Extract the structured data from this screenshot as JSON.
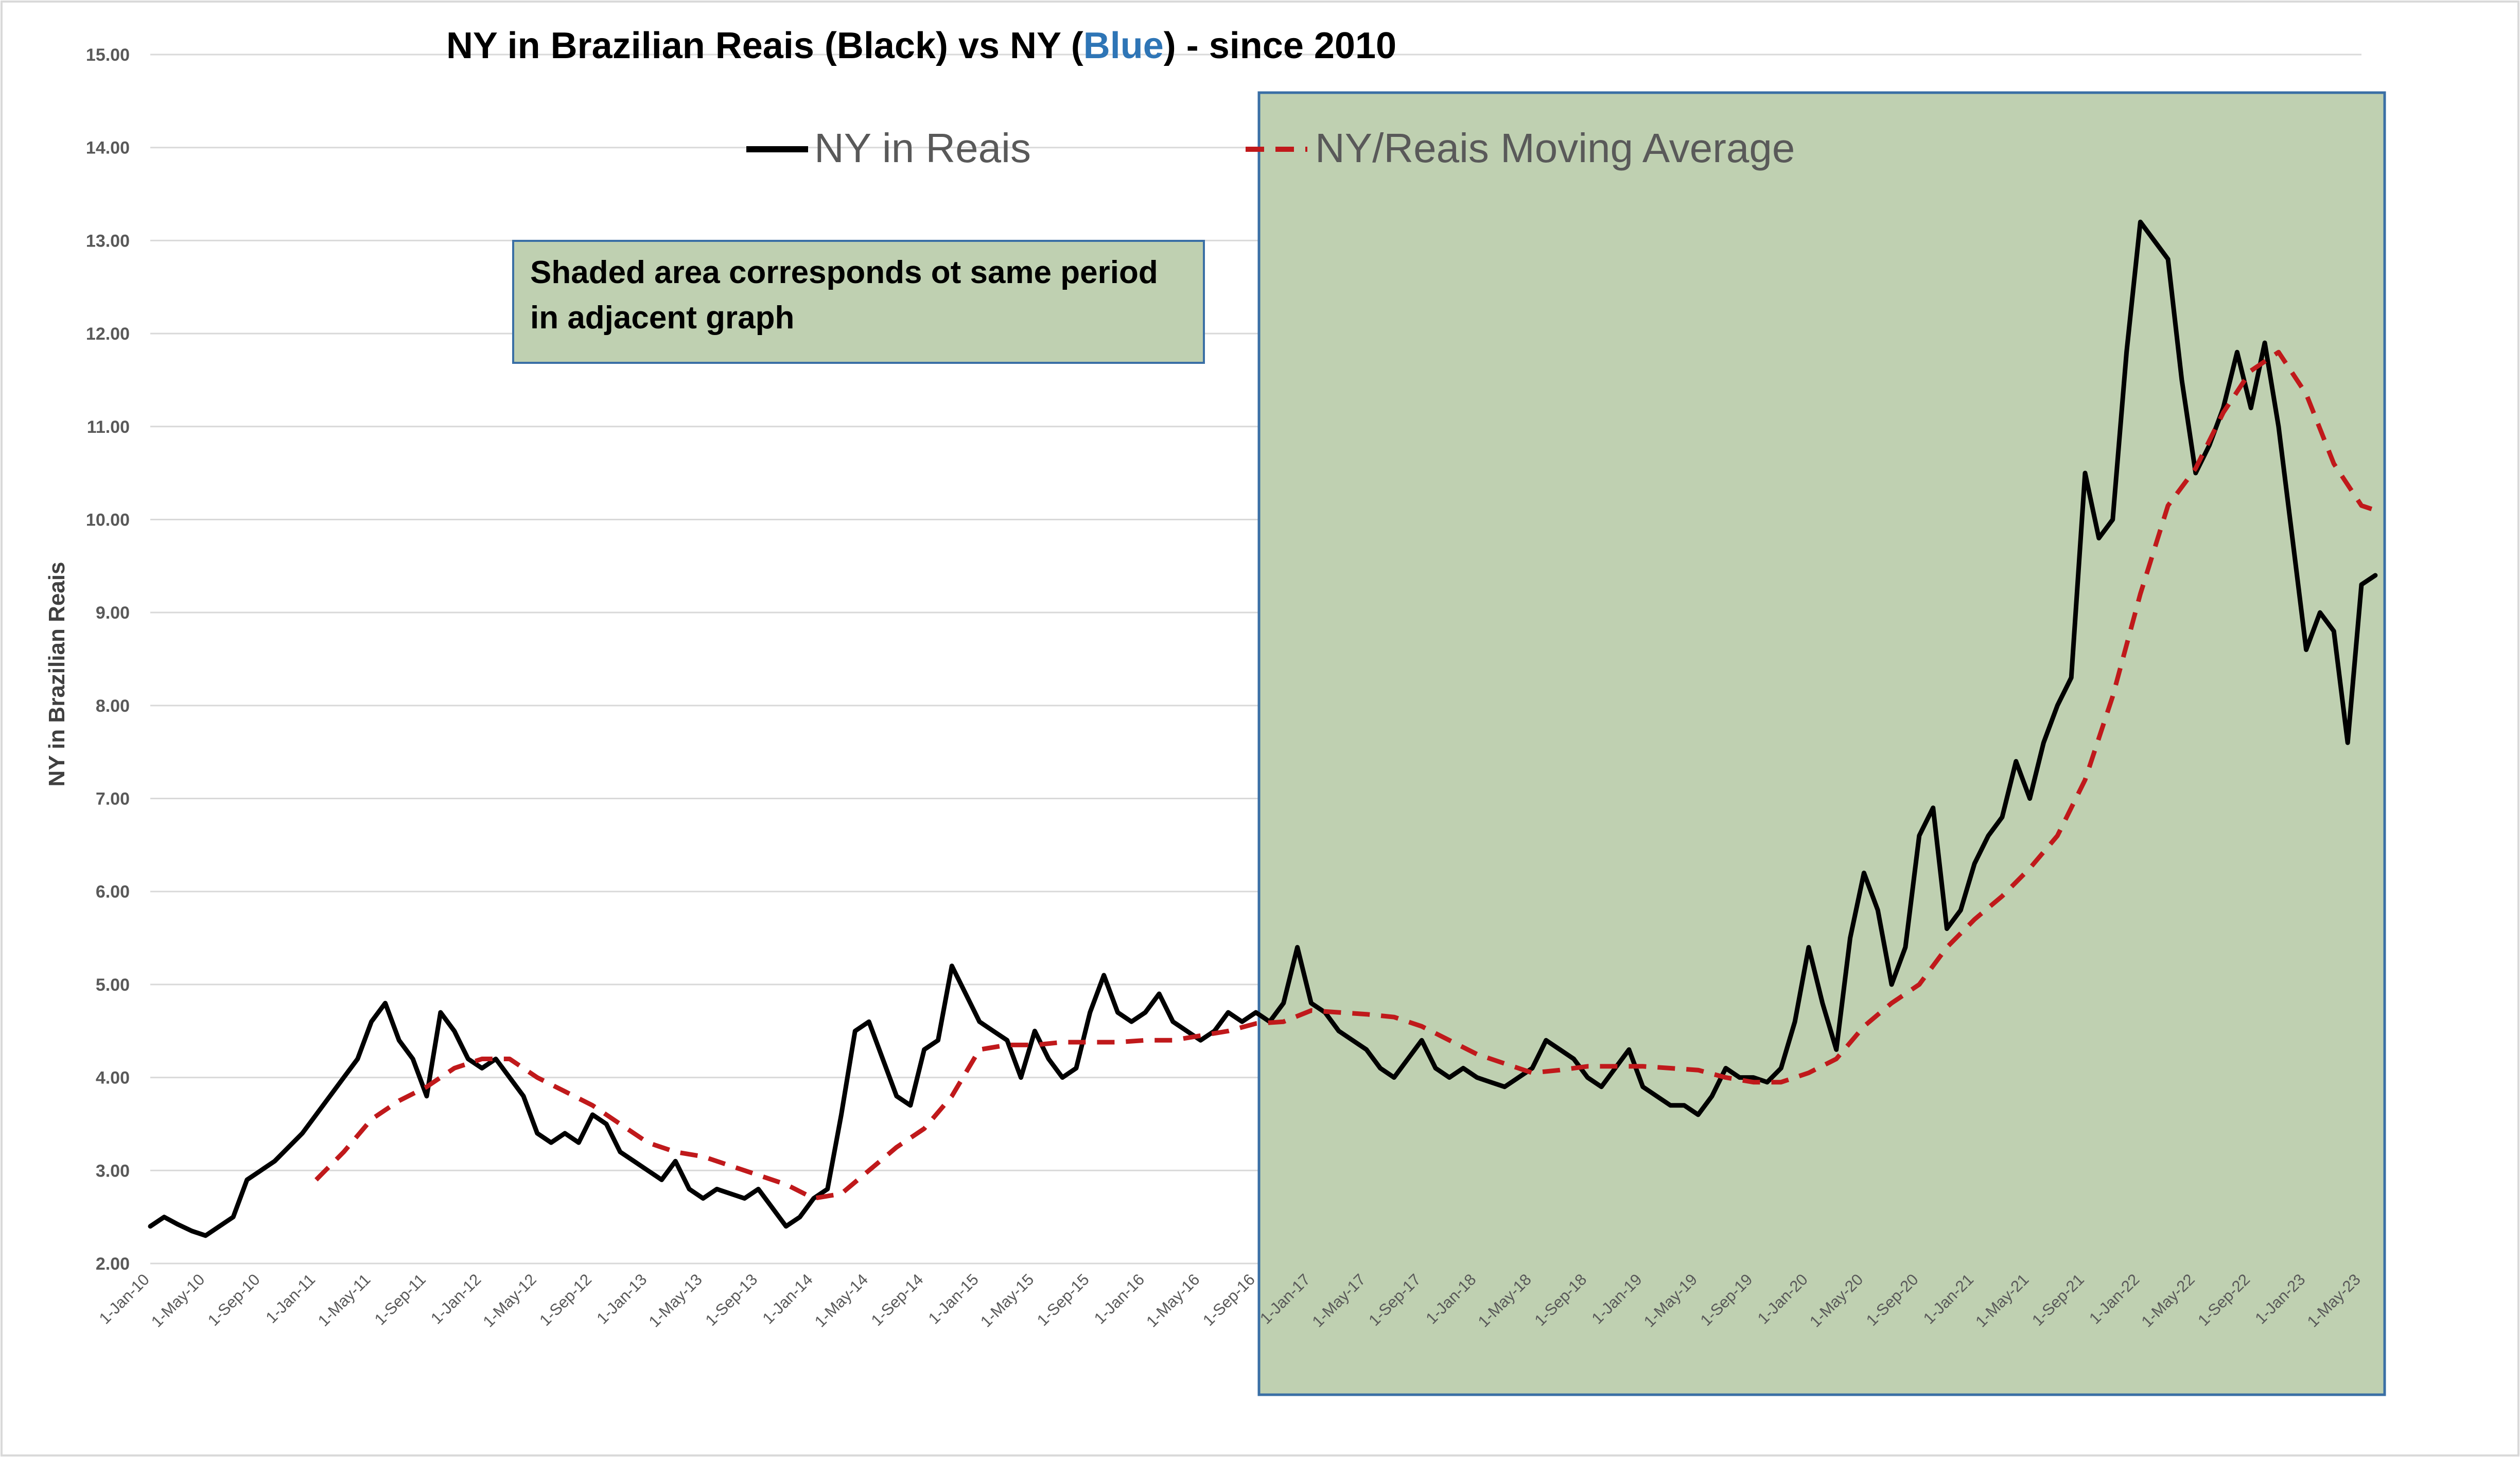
{
  "chart_data": {
    "type": "line",
    "title_parts": [
      "NY in Brazilian Reais (Black) vs NY (",
      "Blue",
      ") - since 2010"
    ],
    "ylabel": "NY in Brazilian Reais",
    "xlabel": "",
    "ylim": [
      2.0,
      15.0
    ],
    "y_ticks": [
      "2.00",
      "3.00",
      "4.00",
      "5.00",
      "6.00",
      "7.00",
      "8.00",
      "9.00",
      "10.00",
      "11.00",
      "12.00",
      "13.00",
      "14.00",
      "15.00"
    ],
    "x_ticks": [
      "1-Jan-10",
      "1-May-10",
      "1-Sep-10",
      "1-Jan-11",
      "1-May-11",
      "1-Sep-11",
      "1-Jan-12",
      "1-May-12",
      "1-Sep-12",
      "1-Jan-13",
      "1-May-13",
      "1-Sep-13",
      "1-Jan-14",
      "1-May-14",
      "1-Sep-14",
      "1-Jan-15",
      "1-May-15",
      "1-Sep-15",
      "1-Jan-16",
      "1-May-16",
      "1-Sep-16",
      "1-Jan-17",
      "1-May-17",
      "1-Sep-17",
      "1-Jan-18",
      "1-May-18",
      "1-Sep-18",
      "1-Jan-19",
      "1-May-19",
      "1-Sep-19",
      "1-Jan-20",
      "1-May-20",
      "1-Sep-20",
      "1-Jan-21",
      "1-May-21",
      "1-Sep-21",
      "1-Jan-22",
      "1-May-22",
      "1-Sep-22",
      "1-Jan-23",
      "1-May-23"
    ],
    "grid": true,
    "legend": "top-center",
    "shaded_region": {
      "start": "1-Sep-16",
      "end": "1-May-23"
    },
    "annotation": [
      "Shaded area corresponds ot same period",
      "in adjacent graph"
    ],
    "colors": {
      "series": "#000000",
      "moving_average": "#c0191b",
      "shade_fill": "#bfd0b1",
      "shade_border": "#3a6fa5",
      "title_blue": "#2e75b6",
      "grid": "#d9d9d9"
    },
    "series": [
      {
        "name": "NY in Reais",
        "points": [
          [
            "1-Jan-10",
            2.4
          ],
          [
            "1-Feb-10",
            2.5
          ],
          [
            "1-Mar-10",
            2.42
          ],
          [
            "1-Apr-10",
            2.35
          ],
          [
            "1-May-10",
            2.3
          ],
          [
            "1-Jun-10",
            2.4
          ],
          [
            "1-Jul-10",
            2.5
          ],
          [
            "1-Aug-10",
            2.9
          ],
          [
            "1-Sep-10",
            3.0
          ],
          [
            "1-Oct-10",
            3.1
          ],
          [
            "1-Nov-10",
            3.25
          ],
          [
            "1-Dec-10",
            3.4
          ],
          [
            "1-Jan-11",
            3.6
          ],
          [
            "1-Feb-11",
            3.8
          ],
          [
            "1-Mar-11",
            4.0
          ],
          [
            "1-Apr-11",
            4.2
          ],
          [
            "1-May-11",
            4.6
          ],
          [
            "1-Jun-11",
            4.8
          ],
          [
            "1-Jul-11",
            4.4
          ],
          [
            "1-Aug-11",
            4.2
          ],
          [
            "1-Sep-11",
            3.8
          ],
          [
            "1-Oct-11",
            4.7
          ],
          [
            "1-Nov-11",
            4.5
          ],
          [
            "1-Dec-11",
            4.2
          ],
          [
            "1-Jan-12",
            4.1
          ],
          [
            "1-Feb-12",
            4.2
          ],
          [
            "1-Mar-12",
            4.0
          ],
          [
            "1-Apr-12",
            3.8
          ],
          [
            "1-May-12",
            3.4
          ],
          [
            "1-Jun-12",
            3.3
          ],
          [
            "1-Jul-12",
            3.4
          ],
          [
            "1-Aug-12",
            3.3
          ],
          [
            "1-Sep-12",
            3.6
          ],
          [
            "1-Oct-12",
            3.5
          ],
          [
            "1-Nov-12",
            3.2
          ],
          [
            "1-Dec-12",
            3.1
          ],
          [
            "1-Jan-13",
            3.0
          ],
          [
            "1-Feb-13",
            2.9
          ],
          [
            "1-Mar-13",
            3.1
          ],
          [
            "1-Apr-13",
            2.8
          ],
          [
            "1-May-13",
            2.7
          ],
          [
            "1-Jun-13",
            2.8
          ],
          [
            "1-Jul-13",
            2.75
          ],
          [
            "1-Aug-13",
            2.7
          ],
          [
            "1-Sep-13",
            2.8
          ],
          [
            "1-Oct-13",
            2.6
          ],
          [
            "1-Nov-13",
            2.4
          ],
          [
            "1-Dec-13",
            2.5
          ],
          [
            "1-Jan-14",
            2.7
          ],
          [
            "1-Feb-14",
            2.8
          ],
          [
            "1-Mar-14",
            3.6
          ],
          [
            "1-Apr-14",
            4.5
          ],
          [
            "1-May-14",
            4.6
          ],
          [
            "1-Jun-14",
            4.2
          ],
          [
            "1-Jul-14",
            3.8
          ],
          [
            "1-Aug-14",
            3.7
          ],
          [
            "1-Sep-14",
            4.3
          ],
          [
            "1-Oct-14",
            4.4
          ],
          [
            "1-Nov-14",
            5.2
          ],
          [
            "1-Dec-14",
            4.9
          ],
          [
            "1-Jan-15",
            4.6
          ],
          [
            "1-Feb-15",
            4.5
          ],
          [
            "1-Mar-15",
            4.4
          ],
          [
            "1-Apr-15",
            4.0
          ],
          [
            "1-May-15",
            4.5
          ],
          [
            "1-Jun-15",
            4.2
          ],
          [
            "1-Jul-15",
            4.0
          ],
          [
            "1-Aug-15",
            4.1
          ],
          [
            "1-Sep-15",
            4.7
          ],
          [
            "1-Oct-15",
            5.1
          ],
          [
            "1-Nov-15",
            4.7
          ],
          [
            "1-Dec-15",
            4.6
          ],
          [
            "1-Jan-16",
            4.7
          ],
          [
            "1-Feb-16",
            4.9
          ],
          [
            "1-Mar-16",
            4.6
          ],
          [
            "1-Apr-16",
            4.5
          ],
          [
            "1-May-16",
            4.4
          ],
          [
            "1-Jun-16",
            4.5
          ],
          [
            "1-Jul-16",
            4.7
          ],
          [
            "1-Aug-16",
            4.6
          ],
          [
            "1-Sep-16",
            4.7
          ],
          [
            "1-Oct-16",
            4.6
          ],
          [
            "1-Nov-16",
            4.8
          ],
          [
            "1-Dec-16",
            5.4
          ],
          [
            "1-Jan-17",
            4.8
          ],
          [
            "1-Feb-17",
            4.7
          ],
          [
            "1-Mar-17",
            4.5
          ],
          [
            "1-Apr-17",
            4.4
          ],
          [
            "1-May-17",
            4.3
          ],
          [
            "1-Jun-17",
            4.1
          ],
          [
            "1-Jul-17",
            4.0
          ],
          [
            "1-Aug-17",
            4.2
          ],
          [
            "1-Sep-17",
            4.4
          ],
          [
            "1-Oct-17",
            4.1
          ],
          [
            "1-Nov-17",
            4.0
          ],
          [
            "1-Dec-17",
            4.1
          ],
          [
            "1-Jan-18",
            4.0
          ],
          [
            "1-Feb-18",
            3.95
          ],
          [
            "1-Mar-18",
            3.9
          ],
          [
            "1-Apr-18",
            4.0
          ],
          [
            "1-May-18",
            4.1
          ],
          [
            "1-Jun-18",
            4.4
          ],
          [
            "1-Jul-18",
            4.3
          ],
          [
            "1-Aug-18",
            4.2
          ],
          [
            "1-Sep-18",
            4.0
          ],
          [
            "1-Oct-18",
            3.9
          ],
          [
            "1-Nov-18",
            4.1
          ],
          [
            "1-Dec-18",
            4.3
          ],
          [
            "1-Jan-19",
            3.9
          ],
          [
            "1-Feb-19",
            3.8
          ],
          [
            "1-Mar-19",
            3.7
          ],
          [
            "1-Apr-19",
            3.7
          ],
          [
            "1-May-19",
            3.6
          ],
          [
            "1-Jun-19",
            3.8
          ],
          [
            "1-Jul-19",
            4.1
          ],
          [
            "1-Aug-19",
            4.0
          ],
          [
            "1-Sep-19",
            4.0
          ],
          [
            "1-Oct-19",
            3.95
          ],
          [
            "1-Nov-19",
            4.1
          ],
          [
            "1-Dec-19",
            4.6
          ],
          [
            "1-Jan-20",
            5.4
          ],
          [
            "1-Feb-20",
            4.8
          ],
          [
            "1-Mar-20",
            4.3
          ],
          [
            "1-Apr-20",
            5.5
          ],
          [
            "1-May-20",
            6.2
          ],
          [
            "1-Jun-20",
            5.8
          ],
          [
            "1-Jul-20",
            5.0
          ],
          [
            "1-Aug-20",
            5.4
          ],
          [
            "1-Sep-20",
            6.6
          ],
          [
            "1-Oct-20",
            6.9
          ],
          [
            "1-Nov-20",
            5.6
          ],
          [
            "1-Dec-20",
            5.8
          ],
          [
            "1-Jan-21",
            6.3
          ],
          [
            "1-Feb-21",
            6.6
          ],
          [
            "1-Mar-21",
            6.8
          ],
          [
            "1-Apr-21",
            7.4
          ],
          [
            "1-May-21",
            7.0
          ],
          [
            "1-Jun-21",
            7.6
          ],
          [
            "1-Jul-21",
            8.0
          ],
          [
            "1-Aug-21",
            8.3
          ],
          [
            "1-Sep-21",
            10.5
          ],
          [
            "1-Oct-21",
            9.8
          ],
          [
            "1-Nov-21",
            10.0
          ],
          [
            "1-Dec-21",
            11.8
          ],
          [
            "1-Jan-22",
            13.2
          ],
          [
            "1-Feb-22",
            13.0
          ],
          [
            "1-Mar-22",
            12.8
          ],
          [
            "1-Apr-22",
            11.5
          ],
          [
            "1-May-22",
            10.5
          ],
          [
            "1-Jun-22",
            10.8
          ],
          [
            "1-Jul-22",
            11.2
          ],
          [
            "1-Aug-22",
            11.8
          ],
          [
            "1-Sep-22",
            11.2
          ],
          [
            "1-Oct-22",
            11.9
          ],
          [
            "1-Nov-22",
            11.0
          ],
          [
            "1-Dec-22",
            9.8
          ],
          [
            "1-Jan-23",
            8.6
          ],
          [
            "1-Feb-23",
            9.0
          ],
          [
            "1-Mar-23",
            8.8
          ],
          [
            "1-Apr-23",
            7.6
          ],
          [
            "1-May-23",
            9.3
          ],
          [
            "1-Jun-23",
            9.4
          ]
        ]
      },
      {
        "name": "NY/Reais Moving Average",
        "points": [
          [
            "1-Jan-11",
            2.9
          ],
          [
            "1-Mar-11",
            3.2
          ],
          [
            "1-May-11",
            3.55
          ],
          [
            "1-Jul-11",
            3.75
          ],
          [
            "1-Sep-11",
            3.9
          ],
          [
            "1-Nov-11",
            4.1
          ],
          [
            "1-Jan-12",
            4.2
          ],
          [
            "1-Mar-12",
            4.2
          ],
          [
            "1-May-12",
            4.0
          ],
          [
            "1-Jul-12",
            3.85
          ],
          [
            "1-Sep-12",
            3.7
          ],
          [
            "1-Nov-12",
            3.5
          ],
          [
            "1-Jan-13",
            3.3
          ],
          [
            "1-Mar-13",
            3.2
          ],
          [
            "1-May-13",
            3.15
          ],
          [
            "1-Jul-13",
            3.05
          ],
          [
            "1-Sep-13",
            2.95
          ],
          [
            "1-Nov-13",
            2.85
          ],
          [
            "1-Jan-14",
            2.7
          ],
          [
            "1-Mar-14",
            2.75
          ],
          [
            "1-May-14",
            3.0
          ],
          [
            "1-Jul-14",
            3.25
          ],
          [
            "1-Sep-14",
            3.45
          ],
          [
            "1-Nov-14",
            3.8
          ],
          [
            "1-Jan-15",
            4.3
          ],
          [
            "1-Mar-15",
            4.35
          ],
          [
            "1-May-15",
            4.35
          ],
          [
            "1-Jul-15",
            4.38
          ],
          [
            "1-Sep-15",
            4.38
          ],
          [
            "1-Nov-15",
            4.38
          ],
          [
            "1-Jan-16",
            4.4
          ],
          [
            "1-Mar-16",
            4.4
          ],
          [
            "1-May-16",
            4.45
          ],
          [
            "1-Jul-16",
            4.5
          ],
          [
            "1-Sep-16",
            4.58
          ],
          [
            "1-Nov-16",
            4.6
          ],
          [
            "1-Jan-17",
            4.72
          ],
          [
            "1-Mar-17",
            4.7
          ],
          [
            "1-May-17",
            4.68
          ],
          [
            "1-Jul-17",
            4.65
          ],
          [
            "1-Sep-17",
            4.55
          ],
          [
            "1-Nov-17",
            4.4
          ],
          [
            "1-Jan-18",
            4.25
          ],
          [
            "1-Mar-18",
            4.15
          ],
          [
            "1-May-18",
            4.05
          ],
          [
            "1-Jul-18",
            4.08
          ],
          [
            "1-Sep-18",
            4.12
          ],
          [
            "1-Nov-18",
            4.12
          ],
          [
            "1-Jan-19",
            4.12
          ],
          [
            "1-Mar-19",
            4.1
          ],
          [
            "1-May-19",
            4.08
          ],
          [
            "1-Jul-19",
            4.0
          ],
          [
            "1-Sep-19",
            3.95
          ],
          [
            "1-Nov-19",
            3.95
          ],
          [
            "1-Jan-20",
            4.05
          ],
          [
            "1-Mar-20",
            4.2
          ],
          [
            "1-May-20",
            4.55
          ],
          [
            "1-Jul-20",
            4.8
          ],
          [
            "1-Sep-20",
            5.0
          ],
          [
            "1-Nov-20",
            5.4
          ],
          [
            "1-Jan-21",
            5.7
          ],
          [
            "1-Mar-21",
            5.95
          ],
          [
            "1-May-21",
            6.25
          ],
          [
            "1-Jul-21",
            6.6
          ],
          [
            "1-Sep-21",
            7.2
          ],
          [
            "1-Nov-21",
            8.1
          ],
          [
            "1-Jan-22",
            9.2
          ],
          [
            "1-Mar-22",
            10.15
          ],
          [
            "1-May-22",
            10.55
          ],
          [
            "1-Jul-22",
            11.15
          ],
          [
            "1-Sep-22",
            11.6
          ],
          [
            "1-Nov-22",
            11.8
          ],
          [
            "1-Jan-23",
            11.35
          ],
          [
            "1-Mar-23",
            10.6
          ],
          [
            "1-May-23",
            10.15
          ],
          [
            "1-Jun-23",
            10.1
          ]
        ]
      }
    ]
  }
}
